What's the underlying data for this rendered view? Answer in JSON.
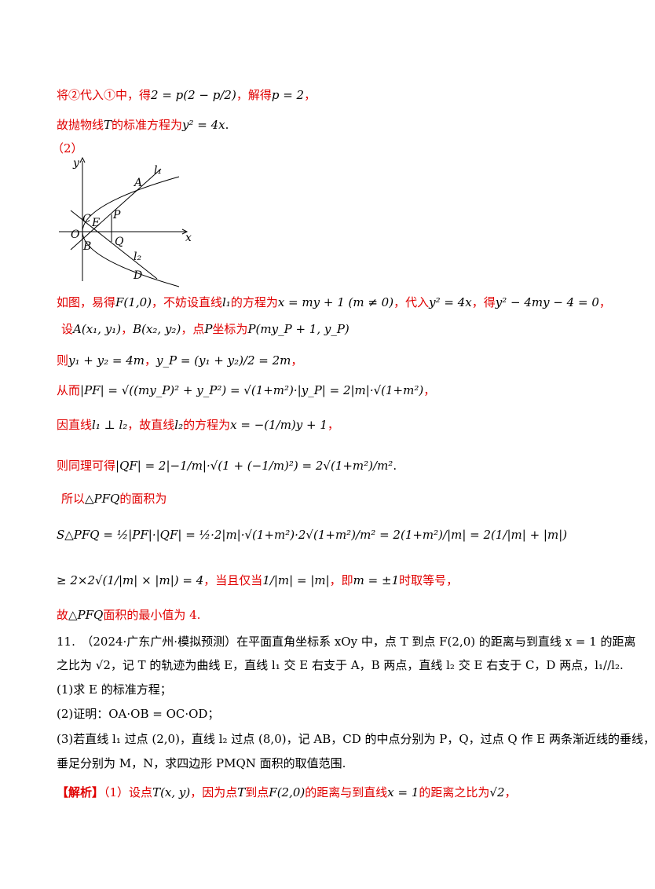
{
  "lines": [
    [
      "将②代入①中，得",
      "2 = p(2 − p/2)",
      "，解得",
      "p = 2",
      "，"
    ],
    [
      "故抛物线",
      "T",
      "的标准方程为",
      "y² = 4x",
      "."
    ],
    [
      "（2）"
    ],
    [
      "如图，易得",
      "F(1,0)",
      "，不妨设直线",
      "l₁",
      "的方程为",
      "x = my + 1 (m ≠ 0)",
      "，代入",
      "y² = 4x",
      "，得",
      "y² − 4my − 4 = 0",
      "，"
    ],
    [
      "设",
      "A(x₁, y₁)",
      "，",
      "B(x₂, y₂)",
      "，点",
      "P",
      "坐标为",
      "P(my_P + 1, y_P)"
    ],
    [
      "则",
      "y₁ + y₂ = 4m",
      "，",
      "y_P = (y₁ + y₂)/2 = 2m",
      "，"
    ],
    [
      "从而",
      "|PF| = √((my_P)² + y_P²) = √(1+m²)·|y_P| = 2|m|·√(1+m²)",
      "，"
    ],
    [
      "因直线",
      "l₁ ⊥ l₂",
      "，故直线",
      "l₂",
      "的方程为",
      "x = −(1/m)y + 1",
      "，"
    ],
    [
      "则同理可得",
      "|QF| = 2|−1/m|·√(1 + (−1/m)²) = 2√(1+m²)/m²",
      "."
    ],
    [
      "所以",
      "△PFQ",
      "的面积为"
    ],
    [
      "S△PFQ = ½|PF|·|QF| = ½·2|m|·√(1+m²)·2√(1+m²)/m² = 2(1+m²)/|m| = 2(1/|m| + |m|)"
    ],
    [
      "≥ 2×2√(1/|m| × |m|) = 4",
      "，当且仅当",
      "1/|m| = |m|",
      "，即",
      "m = ±1",
      "时取等号，"
    ],
    [
      "故",
      "△PFQ",
      "面积的最小值为 4."
    ],
    [
      "11.　（2024·广东广州·模拟预测）在平面直角坐标系 xOy 中，点 T 到点 F(2,0) 的距离与到直线 x = 1 的距离"
    ],
    [
      "之比为 √2，记 T 的轨迹为曲线 E，直线 l₁ 交 E 右支于 A，B 两点，直线 l₂ 交 E 右支于 C，D 两点，l₁//l₂."
    ],
    [
      "(1)求 E 的标准方程；"
    ],
    [
      "(2)证明：OA·OB = OC·OD；"
    ],
    [
      "(3)若直线 l₁ 过点 (2,0)，直线 l₂ 过点 (8,0)，记 AB，CD 的中点分别为 P，Q，过点 Q 作 E 两条渐近线的垂线，"
    ],
    [
      "垂足分别为 M，N，求四边形 PMQN 面积的取值范围."
    ],
    [
      "【解析】",
      "（1）设点",
      "T(x, y)",
      "，因为点",
      "T",
      "到点",
      "F(2,0)",
      "的距离与到直线",
      "x = 1",
      "的距离之比为",
      "√2",
      "，"
    ]
  ],
  "figure": {
    "labels": [
      "y",
      "x",
      "O",
      "C",
      "E",
      "P",
      "A",
      "B",
      "Q",
      "D",
      "l₁",
      "l₂"
    ]
  }
}
